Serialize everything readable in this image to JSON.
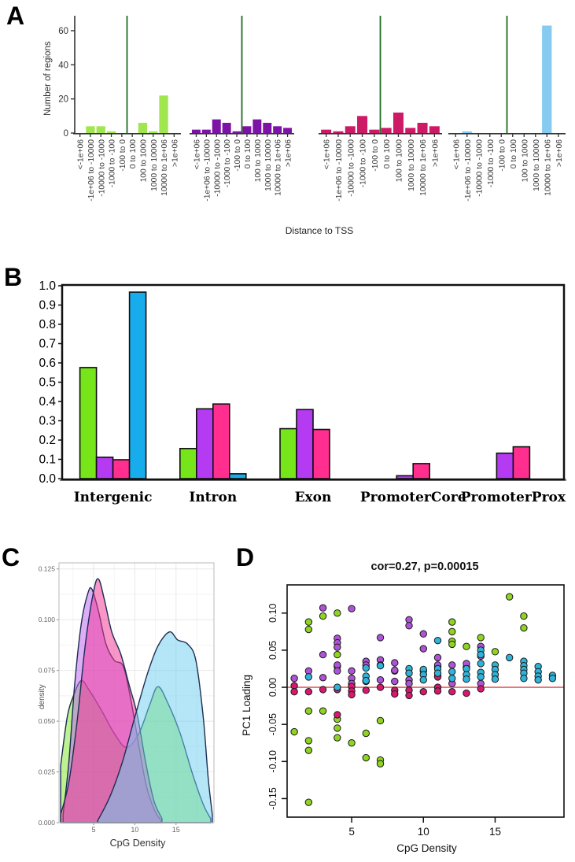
{
  "panels": {
    "a": {
      "label": "A"
    },
    "b": {
      "label": "B"
    },
    "c": {
      "label": "C"
    },
    "d": {
      "label": "D"
    }
  },
  "colors": {
    "tss_line": "#1E6B1E",
    "zero_line": "#E04545",
    "axis": "#333333"
  },
  "chart_data": [
    {
      "id": "A",
      "type": "bar",
      "title": "",
      "xlabel": "Distance to TSS",
      "ylabel": "Number of regions",
      "ylim": [
        0,
        68
      ],
      "yticks": [
        0,
        20,
        40,
        60
      ],
      "categories": [
        "<-1e+06",
        "-1e+06 to -10000",
        "-10000 to -1000",
        "-1000 to -100",
        "-100 to 0",
        "0 to 100",
        "100 to 1000",
        "1000 to 10000",
        "10000 to 1e+06",
        ">1e+06"
      ],
      "tss_line_position": "between -100 to 0 and 0 to 100",
      "series": [
        {
          "name": "green",
          "color": "#A2E64F",
          "values": [
            0,
            4,
            4,
            1,
            0,
            0,
            6,
            1,
            22,
            0
          ]
        },
        {
          "name": "purple",
          "color": "#7D12A6",
          "values": [
            2,
            2,
            8,
            6,
            1,
            4,
            8,
            6,
            4,
            3
          ]
        },
        {
          "name": "magenta",
          "color": "#CC1A66",
          "values": [
            2,
            1,
            4,
            10,
            2,
            3,
            12,
            3,
            6,
            4
          ]
        },
        {
          "name": "skyblue",
          "color": "#87CCF0",
          "values": [
            0,
            1,
            0,
            0,
            0,
            0,
            0,
            0,
            63,
            0
          ]
        }
      ]
    },
    {
      "id": "B",
      "type": "bar",
      "title": "",
      "xlabel": "",
      "ylabel": "",
      "ylim": [
        0,
        1.0
      ],
      "yticks": [
        0.0,
        0.1,
        0.2,
        0.3,
        0.4,
        0.5,
        0.6,
        0.7,
        0.8,
        0.9,
        1.0
      ],
      "categories": [
        "Intergenic",
        "Intron",
        "Exon",
        "PromoterCore",
        "PromoterProx"
      ],
      "series": [
        {
          "name": "green",
          "color": "#76E61A",
          "values": [
            0.576,
            0.156,
            0.259,
            0,
            0
          ]
        },
        {
          "name": "purple",
          "color": "#B43BF2",
          "values": [
            0.111,
            0.362,
            0.358,
            0.015,
            0.132
          ]
        },
        {
          "name": "pink",
          "color": "#FF2E8F",
          "values": [
            0.098,
            0.387,
            0.255,
            0.078,
            0.165
          ]
        },
        {
          "name": "blue",
          "color": "#17ACEC",
          "values": [
            0.967,
            0.025,
            0,
            0,
            0
          ]
        }
      ]
    },
    {
      "id": "C",
      "type": "area",
      "title": "",
      "xlabel": "CpG Density",
      "ylabel": "density",
      "xlim": [
        0.8,
        19.6
      ],
      "ylim": [
        0,
        0.128
      ],
      "xticks": [
        5,
        10,
        15
      ],
      "yticks": [
        0.0,
        0.025,
        0.05,
        0.075,
        0.1,
        0.125
      ],
      "series": [
        {
          "name": "green",
          "color": "#7FE62E",
          "points": [
            [
              1,
              0.028
            ],
            [
              1.8,
              0.052
            ],
            [
              2.6,
              0.063
            ],
            [
              3.5,
              0.07
            ],
            [
              4.5,
              0.065
            ],
            [
              6,
              0.055
            ],
            [
              7.5,
              0.044
            ],
            [
              9,
              0.037
            ],
            [
              10.5,
              0.044
            ],
            [
              11.8,
              0.058
            ],
            [
              12.8,
              0.067
            ],
            [
              14,
              0.059
            ],
            [
              15.5,
              0.044
            ],
            [
              17,
              0.024
            ],
            [
              18.3,
              0.009
            ],
            [
              19.2,
              0.002
            ]
          ]
        },
        {
          "name": "purple",
          "color": "#BC63F2",
          "points": [
            [
              1.3,
              0.004
            ],
            [
              2,
              0.03
            ],
            [
              2.7,
              0.068
            ],
            [
              3.5,
              0.098
            ],
            [
              4.3,
              0.113
            ],
            [
              4.8,
              0.115
            ],
            [
              5.6,
              0.104
            ],
            [
              6.5,
              0.088
            ],
            [
              7.5,
              0.08
            ],
            [
              8.6,
              0.077
            ],
            [
              9.5,
              0.061
            ],
            [
              10.4,
              0.04
            ],
            [
              11.4,
              0.018
            ],
            [
              12.4,
              0.006
            ],
            [
              13.2,
              0.001
            ]
          ]
        },
        {
          "name": "magenta",
          "color": "#F23596",
          "points": [
            [
              1,
              0.004
            ],
            [
              2,
              0.02
            ],
            [
              3,
              0.05
            ],
            [
              4,
              0.088
            ],
            [
              5,
              0.114
            ],
            [
              5.6,
              0.12
            ],
            [
              6.3,
              0.11
            ],
            [
              7.2,
              0.094
            ],
            [
              8.3,
              0.083
            ],
            [
              9.3,
              0.068
            ],
            [
              10.3,
              0.053
            ],
            [
              11.3,
              0.03
            ],
            [
              12.3,
              0.011
            ],
            [
              13.3,
              0.002
            ]
          ]
        },
        {
          "name": "skyblue",
          "color": "#6FCFF2",
          "points": [
            [
              5.5,
              0.001
            ],
            [
              7,
              0.013
            ],
            [
              8.5,
              0.03
            ],
            [
              10,
              0.052
            ],
            [
              11.5,
              0.073
            ],
            [
              12.8,
              0.087
            ],
            [
              14.2,
              0.094
            ],
            [
              15.2,
              0.09
            ],
            [
              16.4,
              0.088
            ],
            [
              17.4,
              0.08
            ],
            [
              18.3,
              0.052
            ],
            [
              18.9,
              0.022
            ],
            [
              19.4,
              0.004
            ]
          ]
        }
      ]
    },
    {
      "id": "D",
      "type": "scatter",
      "title": "cor=0.27, p=0.00015",
      "xlabel": "CpG Density",
      "ylabel": "PC1 Loading",
      "xlim": [
        0.5,
        19.8
      ],
      "ylim": [
        -0.175,
        0.138
      ],
      "xticks": [
        5,
        10,
        15
      ],
      "yticks": [
        -0.15,
        -0.1,
        -0.05,
        0.0,
        0.05,
        0.1
      ],
      "zero_line_y": 0,
      "series": [
        {
          "name": "green",
          "color": "#8FD420",
          "points": [
            [
              1,
              -0.06
            ],
            [
              2,
              0.088
            ],
            [
              2,
              0.078
            ],
            [
              2,
              -0.032
            ],
            [
              2,
              -0.072
            ],
            [
              2,
              -0.085
            ],
            [
              2,
              -0.155
            ],
            [
              3,
              0.096
            ],
            [
              3,
              -0.032
            ],
            [
              4,
              0.1
            ],
            [
              4,
              0.044
            ],
            [
              4,
              0.028
            ],
            [
              4,
              -0.043
            ],
            [
              4,
              -0.055
            ],
            [
              4,
              -0.068
            ],
            [
              5,
              -0.075
            ],
            [
              6,
              -0.062
            ],
            [
              6,
              -0.095
            ],
            [
              7,
              -0.045
            ],
            [
              7,
              -0.098
            ],
            [
              7,
              -0.103
            ],
            [
              8,
              0.022
            ],
            [
              11,
              0.028
            ],
            [
              12,
              0.088
            ],
            [
              12,
              0.075
            ],
            [
              12,
              0.062
            ],
            [
              12,
              0.058
            ],
            [
              13,
              0.055
            ],
            [
              13,
              0.027
            ],
            [
              14,
              0.067
            ],
            [
              15,
              0.048
            ],
            [
              16,
              0.122
            ],
            [
              17,
              0.096
            ],
            [
              17,
              0.08
            ]
          ]
        },
        {
          "name": "purple",
          "color": "#AE52D6",
          "points": [
            [
              1,
              0.012
            ],
            [
              2,
              0.022
            ],
            [
              3,
              0.107
            ],
            [
              3,
              0.044
            ],
            [
              3,
              0.013
            ],
            [
              4,
              0.066
            ],
            [
              4,
              0.06
            ],
            [
              4,
              0.054
            ],
            [
              4,
              0.03
            ],
            [
              4,
              0.022
            ],
            [
              5,
              0.106
            ],
            [
              5,
              0.022
            ],
            [
              5,
              0.012
            ],
            [
              5,
              0.005
            ],
            [
              6,
              0.035
            ],
            [
              6,
              0.03
            ],
            [
              6,
              0.008
            ],
            [
              7,
              0.067
            ],
            [
              7,
              0.037
            ],
            [
              7,
              0.03
            ],
            [
              7,
              0.01
            ],
            [
              8,
              0.033
            ],
            [
              8,
              0.023
            ],
            [
              8,
              0.008
            ],
            [
              9,
              0.091
            ],
            [
              9,
              0.083
            ],
            [
              9,
              0.01
            ],
            [
              9,
              0.005
            ],
            [
              10,
              0.072
            ],
            [
              10,
              0.052
            ],
            [
              10,
              0.022
            ],
            [
              11,
              0.04
            ],
            [
              11,
              0.03
            ],
            [
              11,
              0.015
            ],
            [
              12,
              0.03
            ],
            [
              12,
              0.005
            ],
            [
              13,
              0.032
            ],
            [
              14,
              0.055
            ],
            [
              14,
              0.042
            ],
            [
              14,
              0.005
            ]
          ]
        },
        {
          "name": "magenta",
          "color": "#D6186E",
          "points": [
            [
              1,
              0.002
            ],
            [
              1,
              -0.006
            ],
            [
              2,
              -0.006
            ],
            [
              3,
              -0.003
            ],
            [
              4,
              -0.037
            ],
            [
              4,
              -0.003
            ],
            [
              5,
              0.001
            ],
            [
              5,
              -0.005
            ],
            [
              5,
              -0.01
            ],
            [
              6,
              -0.004
            ],
            [
              7,
              0.0
            ],
            [
              8,
              -0.004
            ],
            [
              8,
              -0.009
            ],
            [
              9,
              -0.004
            ],
            [
              9,
              -0.011
            ],
            [
              10,
              -0.006
            ],
            [
              11,
              0.014
            ],
            [
              11,
              0.0
            ],
            [
              11,
              -0.005
            ],
            [
              12,
              -0.006
            ],
            [
              13,
              -0.008
            ],
            [
              14,
              -0.002
            ]
          ]
        },
        {
          "name": "blue",
          "color": "#2FB3D8",
          "points": [
            [
              2,
              0.014
            ],
            [
              4,
              0.0
            ],
            [
              6,
              0.026
            ],
            [
              6,
              0.015
            ],
            [
              6,
              0.009
            ],
            [
              7,
              0.029
            ],
            [
              9,
              0.025
            ],
            [
              9,
              0.019
            ],
            [
              10,
              0.024
            ],
            [
              10,
              0.017
            ],
            [
              10,
              0.01
            ],
            [
              11,
              0.063
            ],
            [
              11,
              0.025
            ],
            [
              11,
              0.019
            ],
            [
              12,
              0.021
            ],
            [
              12,
              0.012
            ],
            [
              13,
              0.025
            ],
            [
              13,
              0.017
            ],
            [
              13,
              0.011
            ],
            [
              14,
              0.05
            ],
            [
              14,
              0.044
            ],
            [
              14,
              0.032
            ],
            [
              14,
              0.02
            ],
            [
              14,
              0.014
            ],
            [
              15,
              0.03
            ],
            [
              15,
              0.024
            ],
            [
              15,
              0.017
            ],
            [
              15,
              0.011
            ],
            [
              16,
              0.04
            ],
            [
              17,
              0.035
            ],
            [
              17,
              0.029
            ],
            [
              17,
              0.024
            ],
            [
              17,
              0.019
            ],
            [
              17,
              0.012
            ],
            [
              18,
              0.028
            ],
            [
              18,
              0.021
            ],
            [
              18,
              0.015
            ],
            [
              18,
              0.01
            ],
            [
              19,
              0.016
            ],
            [
              19,
              0.012
            ]
          ]
        }
      ]
    }
  ]
}
